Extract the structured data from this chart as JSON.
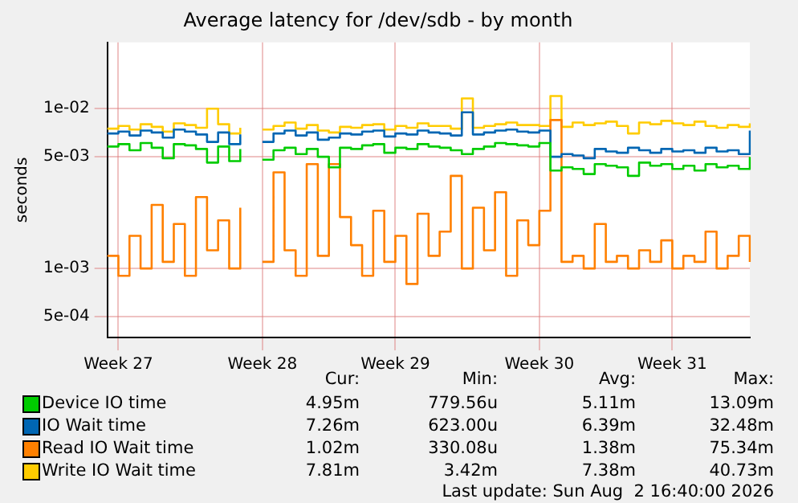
{
  "chart_data": {
    "type": "step",
    "title": "Average latency for /dev/sdb - by month",
    "ylabel": "seconds",
    "log": true,
    "grid": true,
    "legend": "bottom",
    "categories": [
      null,
      "Week 27",
      null,
      null,
      null,
      null,
      null,
      null,
      null,
      null,
      null,
      null,
      null,
      null,
      "Week 28",
      null,
      null,
      null,
      null,
      null,
      null,
      null,
      null,
      null,
      null,
      null,
      "Week 29",
      null,
      null,
      null,
      null,
      null,
      null,
      null,
      null,
      null,
      null,
      null,
      null,
      "Week 30",
      null,
      null,
      null,
      null,
      null,
      null,
      null,
      null,
      null,
      null,
      null,
      "Week 31",
      null,
      null,
      null,
      null,
      null,
      null,
      null
    ],
    "ylim": [
      0.00037,
      0.026
    ],
    "yticks": [
      {
        "value": 0.0005,
        "label": "5e-04"
      },
      {
        "value": 0.001,
        "label": "1e-03"
      },
      {
        "value": 0.005,
        "label": "5e-03"
      },
      {
        "value": 0.01,
        "label": "1e-02"
      }
    ],
    "series": [
      {
        "name": "Device IO time",
        "color": "#00cc00",
        "values": [
          0.0058,
          0.006,
          0.0055,
          0.0061,
          0.0057,
          0.0049,
          0.006,
          0.0059,
          0.0056,
          0.0046,
          0.0058,
          0.0047,
          0.0056,
          null,
          0.0048,
          0.0055,
          0.0057,
          0.0052,
          0.0056,
          0.005,
          0.0043,
          0.0057,
          0.0056,
          0.0059,
          0.006,
          0.0053,
          0.0057,
          0.0056,
          0.006,
          0.0058,
          0.0057,
          0.0055,
          0.0052,
          0.0056,
          0.0058,
          0.0061,
          0.006,
          0.0059,
          0.0058,
          0.0061,
          0.0041,
          0.0043,
          0.0042,
          0.0039,
          0.0045,
          0.0044,
          0.0043,
          0.0038,
          0.0046,
          0.0044,
          0.0045,
          0.0042,
          0.0044,
          0.0041,
          0.0045,
          0.0043,
          0.0044,
          0.0042,
          0.005
        ]
      },
      {
        "name": "IO Wait time",
        "color": "#0066b3",
        "values": [
          0.007,
          0.0072,
          0.0068,
          0.0073,
          0.0071,
          0.0066,
          0.0074,
          0.0072,
          0.0069,
          0.0062,
          0.0071,
          0.006,
          0.0069,
          null,
          0.0062,
          0.007,
          0.0073,
          0.0068,
          0.0071,
          0.0064,
          0.0066,
          0.007,
          0.0069,
          0.0072,
          0.0073,
          0.0067,
          0.007,
          0.0069,
          0.0073,
          0.0071,
          0.007,
          0.0068,
          0.0095,
          0.0069,
          0.0071,
          0.0073,
          0.0074,
          0.0072,
          0.0071,
          0.0073,
          0.005,
          0.0052,
          0.0051,
          0.0049,
          0.0056,
          0.0054,
          0.0053,
          0.0057,
          0.0055,
          0.0053,
          0.0056,
          0.0054,
          0.0055,
          0.0053,
          0.0057,
          0.0054,
          0.0055,
          0.0052,
          0.0073
        ]
      },
      {
        "name": "Read IO Wait time",
        "color": "#ff8000",
        "values": [
          0.0012,
          0.0009,
          0.0016,
          0.001,
          0.0025,
          0.0011,
          0.0019,
          0.0009,
          0.0028,
          0.0013,
          0.002,
          0.001,
          0.0024,
          null,
          0.0011,
          0.004,
          0.0013,
          0.0009,
          0.0045,
          0.0012,
          0.0045,
          0.0021,
          0.0014,
          0.0009,
          0.0023,
          0.0011,
          0.0016,
          0.0008,
          0.0022,
          0.0012,
          0.0017,
          0.0038,
          0.001,
          0.0024,
          0.0013,
          0.003,
          0.0009,
          0.002,
          0.0014,
          0.0023,
          0.0085,
          0.0011,
          0.0012,
          0.001,
          0.0019,
          0.0011,
          0.0012,
          0.001,
          0.0013,
          0.0011,
          0.0015,
          0.001,
          0.0012,
          0.0011,
          0.0017,
          0.001,
          0.0012,
          0.0016,
          0.0011
        ]
      },
      {
        "name": "Write IO Wait time",
        "color": "#ffcc00",
        "values": [
          0.0075,
          0.0078,
          0.0074,
          0.008,
          0.0077,
          0.0072,
          0.0081,
          0.0079,
          0.0076,
          0.01,
          0.008,
          0.007,
          0.0076,
          null,
          0.0074,
          0.0078,
          0.0082,
          0.0075,
          0.0079,
          0.0073,
          0.0071,
          0.0077,
          0.0076,
          0.0079,
          0.008,
          0.0074,
          0.0078,
          0.0076,
          0.0081,
          0.0078,
          0.0078,
          0.0075,
          0.0116,
          0.0076,
          0.0078,
          0.008,
          0.0082,
          0.0079,
          0.0079,
          0.0078,
          0.012,
          0.0077,
          0.0082,
          0.0079,
          0.0081,
          0.0083,
          0.0078,
          0.007,
          0.0082,
          0.008,
          0.0084,
          0.0081,
          0.0079,
          0.0083,
          0.0078,
          0.0076,
          0.0079,
          0.0077,
          0.0081
        ]
      }
    ],
    "annotations": [
      "Cur:",
      "Min:",
      "Avg:",
      "Max:",
      "4.95m",
      "779.56u",
      "5.11m",
      "13.09m",
      "7.26m",
      "623.00u",
      "6.39m",
      "32.48m",
      "1.02m",
      "330.08u",
      "1.38m",
      "75.34m",
      "7.81m",
      "3.42m",
      "7.38m",
      "40.73m",
      "Last update: Sun Aug  2 16:40:00 2026"
    ]
  }
}
